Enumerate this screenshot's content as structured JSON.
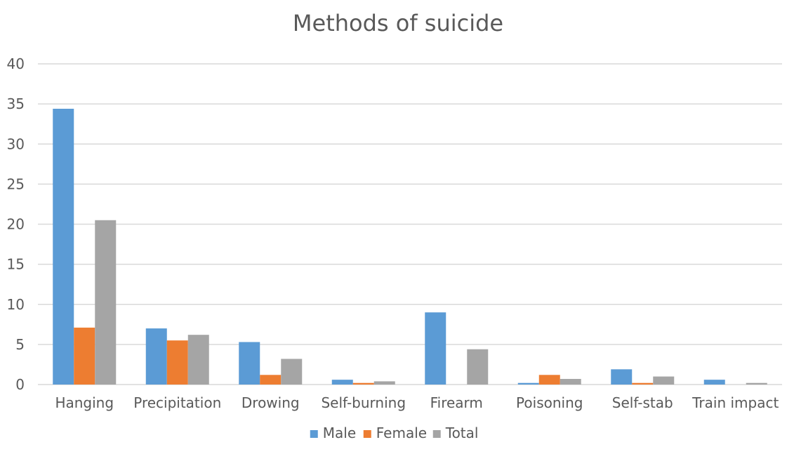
{
  "chart_data": {
    "type": "bar",
    "title": "Methods of suicide",
    "xlabel": "",
    "ylabel": "",
    "categories": [
      "Hanging",
      "Precipitation",
      "Drowing",
      "Self-burning",
      "Firearm",
      "Poisoning",
      "Self-stab",
      "Train impact"
    ],
    "series": [
      {
        "name": "Male",
        "color": "#5b9bd5",
        "values": [
          34.4,
          7.0,
          5.3,
          0.6,
          9.0,
          0.2,
          1.9,
          0.6
        ]
      },
      {
        "name": "Female",
        "color": "#ed7d31",
        "values": [
          7.1,
          5.5,
          1.2,
          0.2,
          0.0,
          1.2,
          0.2,
          0.0
        ]
      },
      {
        "name": "Total",
        "color": "#a5a5a5",
        "values": [
          20.5,
          6.2,
          3.2,
          0.4,
          4.4,
          0.7,
          1.0,
          0.2
        ]
      }
    ],
    "ylim": [
      0,
      40
    ],
    "yticks": [
      0,
      5,
      10,
      15,
      20,
      25,
      30,
      35,
      40
    ],
    "grid": true,
    "legend": "bottom"
  }
}
